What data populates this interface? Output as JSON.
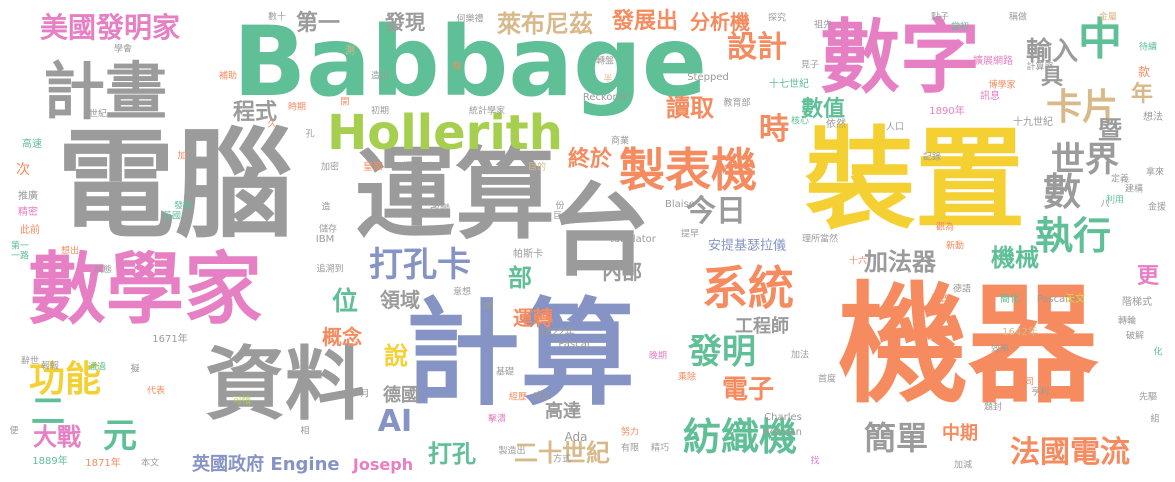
{
  "cloud": {
    "palette": {
      "gray": "#9b9b9b",
      "orange": "#f58b5f",
      "pink": "#e67fc4",
      "teal": "#5fbf96",
      "yellow": "#f5d033",
      "blue": "#8594c4",
      "tan": "#d8b98a",
      "lime": "#a7cf4f"
    },
    "words": [
      {
        "text": "Babbage",
        "color": "teal"
      },
      {
        "text": "電腦",
        "color": "gray"
      },
      {
        "text": "運算",
        "color": "gray"
      },
      {
        "text": "台",
        "color": "gray"
      },
      {
        "text": "數字",
        "color": "pink"
      },
      {
        "text": "裝置",
        "color": "yellow"
      },
      {
        "text": "機器",
        "color": "orange"
      },
      {
        "text": "計算",
        "color": "blue"
      },
      {
        "text": "數學家",
        "color": "pink"
      },
      {
        "text": "資料",
        "color": "gray"
      },
      {
        "text": "計畫",
        "color": "gray"
      },
      {
        "text": "Hollerith",
        "color": "lime"
      },
      {
        "text": "製表機",
        "color": "orange"
      },
      {
        "text": "系統",
        "color": "orange"
      },
      {
        "text": "美國發明家",
        "color": "pink"
      },
      {
        "text": "第一",
        "color": "gray"
      },
      {
        "text": "發現",
        "color": "gray"
      },
      {
        "text": "萊布尼茲",
        "color": "tan"
      },
      {
        "text": "發展出",
        "color": "orange"
      },
      {
        "text": "分析機",
        "color": "orange"
      },
      {
        "text": "設計",
        "color": "orange"
      },
      {
        "text": "輸入",
        "color": "gray"
      },
      {
        "text": "中",
        "color": "teal"
      },
      {
        "text": "具",
        "color": "gray"
      },
      {
        "text": "卡片",
        "color": "tan"
      },
      {
        "text": "年",
        "color": "tan"
      },
      {
        "text": "暨",
        "color": "gray"
      },
      {
        "text": "世界",
        "color": "gray"
      },
      {
        "text": "數",
        "color": "gray"
      },
      {
        "text": "執行",
        "color": "teal"
      },
      {
        "text": "機械",
        "color": "teal"
      },
      {
        "text": "時",
        "color": "orange"
      },
      {
        "text": "數值",
        "color": "teal"
      },
      {
        "text": "讀取",
        "color": "orange"
      },
      {
        "text": "程式",
        "color": "gray"
      },
      {
        "text": "終於",
        "color": "orange"
      },
      {
        "text": "今日",
        "color": "gray"
      },
      {
        "text": "加法器",
        "color": "gray"
      },
      {
        "text": "打孔卡",
        "color": "blue"
      },
      {
        "text": "部",
        "color": "teal"
      },
      {
        "text": "內部",
        "color": "gray"
      },
      {
        "text": "位",
        "color": "teal"
      },
      {
        "text": "領域",
        "color": "gray"
      },
      {
        "text": "概念",
        "color": "orange"
      },
      {
        "text": "說",
        "color": "yellow"
      },
      {
        "text": "運轉",
        "color": "orange"
      },
      {
        "text": "發明",
        "color": "teal"
      },
      {
        "text": "電子",
        "color": "orange"
      },
      {
        "text": "工程師",
        "color": "gray"
      },
      {
        "text": "功能",
        "color": "yellow"
      },
      {
        "text": "二",
        "color": "teal"
      },
      {
        "text": "元",
        "color": "teal"
      },
      {
        "text": "大戰",
        "color": "pink"
      },
      {
        "text": "AI",
        "color": "blue"
      },
      {
        "text": "德國",
        "color": "gray"
      },
      {
        "text": "高達",
        "color": "gray"
      },
      {
        "text": "打孔",
        "color": "teal"
      },
      {
        "text": "二十世紀",
        "color": "tan"
      },
      {
        "text": "紡織機",
        "color": "teal"
      },
      {
        "text": "簡單",
        "color": "gray"
      },
      {
        "text": "中期",
        "color": "orange"
      },
      {
        "text": "法國電流",
        "color": "orange"
      },
      {
        "text": "更",
        "color": "pink"
      },
      {
        "text": "英國政府",
        "color": "blue"
      },
      {
        "text": "Engine",
        "color": "blue"
      },
      {
        "text": "Joseph",
        "color": "pink"
      },
      {
        "text": "安提基瑟拉儀",
        "color": "blue"
      },
      {
        "text": "帕斯卡",
        "color": "gray"
      },
      {
        "text": "tabulator",
        "color": "gray"
      },
      {
        "text": "Ada",
        "color": "gray"
      },
      {
        "text": "方式",
        "color": "gray"
      },
      {
        "text": "Pascal",
        "color": "gray"
      },
      {
        "text": "1822年",
        "color": "gray"
      },
      {
        "text": "Charles",
        "color": "gray"
      },
      {
        "text": "Herman",
        "color": "gray"
      },
      {
        "text": "Pascaline",
        "color": "gray"
      },
      {
        "text": "Reckoner",
        "color": "gray"
      },
      {
        "text": "Stepped",
        "color": "gray"
      },
      {
        "text": "Blaise",
        "color": "gray"
      },
      {
        "text": "IBM",
        "color": "gray"
      },
      {
        "text": "1642年",
        "color": "tan"
      },
      {
        "text": "1671年",
        "color": "gray"
      },
      {
        "text": "1871年",
        "color": "orange"
      },
      {
        "text": "1889年",
        "color": "teal"
      },
      {
        "text": "1890年",
        "color": "pink"
      },
      {
        "text": "十七世紀",
        "color": "teal"
      },
      {
        "text": "十九世紀",
        "color": "gray"
      },
      {
        "text": "數十",
        "color": "gray"
      },
      {
        "text": "測",
        "color": "tan"
      },
      {
        "text": "何樂禮",
        "color": "gray"
      },
      {
        "text": "探究",
        "color": "gray"
      },
      {
        "text": "祖先",
        "color": "gray"
      },
      {
        "text": "點子",
        "color": "gray"
      },
      {
        "text": "當初",
        "color": "teal"
      },
      {
        "text": "稱做",
        "color": "gray"
      },
      {
        "text": "金屬",
        "color": "tan"
      },
      {
        "text": "待續",
        "color": "teal"
      },
      {
        "text": "擴展網路",
        "color": "pink"
      },
      {
        "text": "計算器",
        "color": "gray"
      },
      {
        "text": "訊息",
        "color": "pink"
      },
      {
        "text": "博學家",
        "color": "orange"
      },
      {
        "text": "想法",
        "color": "gray"
      },
      {
        "text": "款",
        "color": "orange"
      },
      {
        "text": "學會",
        "color": "gray"
      },
      {
        "text": "補助",
        "color": "orange"
      },
      {
        "text": "造出",
        "color": "gray"
      },
      {
        "text": "發",
        "color": "orange"
      },
      {
        "text": "轉盤",
        "color": "gray"
      },
      {
        "text": "半",
        "color": "tan"
      },
      {
        "text": "見子",
        "color": "gray"
      },
      {
        "text": "世紀",
        "color": "gray"
      },
      {
        "text": "時期",
        "color": "orange"
      },
      {
        "text": "開",
        "color": "orange"
      },
      {
        "text": "初期",
        "color": "gray"
      },
      {
        "text": "統計學家",
        "color": "gray"
      },
      {
        "text": "教育部",
        "color": "gray"
      },
      {
        "text": "核心",
        "color": "teal"
      },
      {
        "text": "依然",
        "color": "gray"
      },
      {
        "text": "人口",
        "color": "gray"
      },
      {
        "text": "記錄",
        "color": "gray"
      },
      {
        "text": "加密",
        "color": "gray"
      },
      {
        "text": "皇家",
        "color": "orange"
      },
      {
        "text": "還可以",
        "color": "gray"
      },
      {
        "text": "目的",
        "color": "tan"
      },
      {
        "text": "商業",
        "color": "gray"
      },
      {
        "text": "高速",
        "color": "teal"
      },
      {
        "text": "加",
        "color": "orange"
      },
      {
        "text": "次",
        "color": "orange"
      },
      {
        "text": "推廣",
        "color": "gray"
      },
      {
        "text": "精密",
        "color": "pink"
      },
      {
        "text": "英國",
        "color": "teal"
      },
      {
        "text": "發展",
        "color": "teal"
      },
      {
        "text": "改變",
        "color": "gray"
      },
      {
        "text": "份",
        "color": "gray"
      },
      {
        "text": "巨人",
        "color": "gray"
      },
      {
        "text": "提早",
        "color": "gray"
      },
      {
        "text": "定義",
        "color": "gray"
      },
      {
        "text": "建構",
        "color": "gray"
      },
      {
        "text": "拿來",
        "color": "gray"
      },
      {
        "text": "利用",
        "color": "teal"
      },
      {
        "text": "金援",
        "color": "gray"
      },
      {
        "text": "此前",
        "color": "orange"
      },
      {
        "text": "第一",
        "color": "teal"
      },
      {
        "text": "儲存",
        "color": "gray"
      },
      {
        "text": "想出",
        "color": "orange"
      },
      {
        "text": "一路",
        "color": "teal"
      },
      {
        "text": "狀態",
        "color": "gray"
      },
      {
        "text": "追溯到",
        "color": "gray"
      },
      {
        "text": "意想",
        "color": "gray"
      },
      {
        "text": "理所當然",
        "color": "gray"
      },
      {
        "text": "新動",
        "color": "orange"
      },
      {
        "text": "十六",
        "color": "orange"
      },
      {
        "text": "德語",
        "color": "gray"
      },
      {
        "text": "科普",
        "color": "orange"
      },
      {
        "text": "簡化",
        "color": "teal"
      },
      {
        "text": "天文",
        "color": "yellow"
      },
      {
        "text": "階梯式",
        "color": "gray"
      },
      {
        "text": "轉輪",
        "color": "gray"
      },
      {
        "text": "破解",
        "color": "gray"
      },
      {
        "text": "晚期",
        "color": "pink"
      },
      {
        "text": "乘除",
        "color": "orange"
      },
      {
        "text": "加法",
        "color": "gray"
      },
      {
        "text": "效率",
        "color": "gray"
      },
      {
        "text": "首度",
        "color": "gray"
      },
      {
        "text": "公司",
        "color": "orange"
      },
      {
        "text": "亨利",
        "color": "gray"
      },
      {
        "text": "先驅",
        "color": "gray"
      },
      {
        "text": "題封",
        "color": "gray"
      },
      {
        "text": "代表",
        "color": "orange"
      },
      {
        "text": "擬",
        "color": "gray"
      },
      {
        "text": "可惜",
        "color": "lime"
      },
      {
        "text": "經歷",
        "color": "orange"
      },
      {
        "text": "成立",
        "color": "gray"
      },
      {
        "text": "基礎",
        "color": "gray"
      },
      {
        "text": "擊潰",
        "color": "pink"
      },
      {
        "text": "努力",
        "color": "orange"
      },
      {
        "text": "有限",
        "color": "gray"
      },
      {
        "text": "精巧",
        "color": "gray"
      },
      {
        "text": "製造出",
        "color": "gray"
      },
      {
        "text": "找",
        "color": "pink"
      },
      {
        "text": "加減",
        "color": "gray"
      },
      {
        "text": "本文",
        "color": "gray"
      },
      {
        "text": "相",
        "color": "gray"
      },
      {
        "text": "通過",
        "color": "teal"
      },
      {
        "text": "辭世",
        "color": "gray"
      },
      {
        "text": "報報",
        "color": "gray"
      },
      {
        "text": "便",
        "color": "gray"
      },
      {
        "text": "組",
        "color": "gray"
      },
      {
        "text": "化",
        "color": "teal"
      },
      {
        "text": "八",
        "color": "gray"
      },
      {
        "text": "觀為",
        "color": "orange"
      },
      {
        "text": "造",
        "color": "gray"
      },
      {
        "text": "久",
        "color": "orange"
      },
      {
        "text": "孔",
        "color": "gray"
      },
      {
        "text": "關",
        "color": "gray"
      },
      {
        "text": "月",
        "color": "gray"
      }
    ]
  }
}
